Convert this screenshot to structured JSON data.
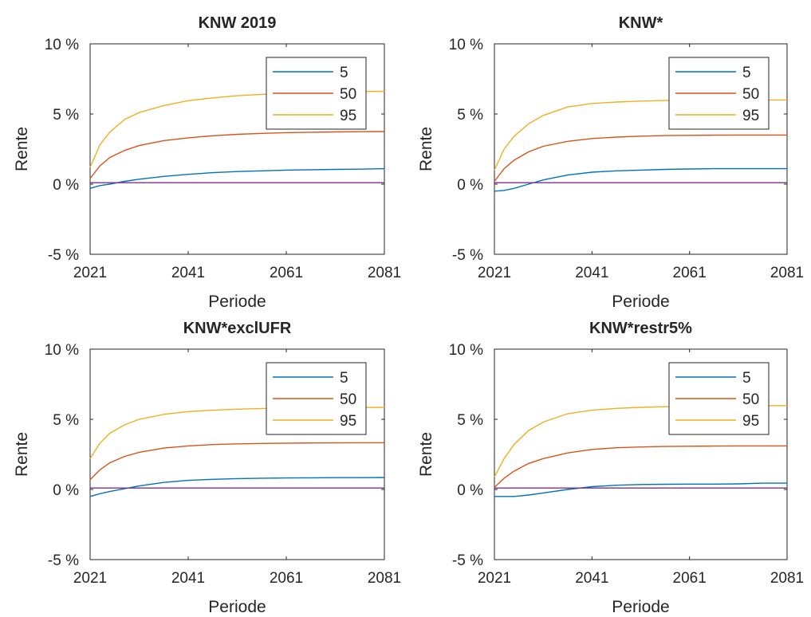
{
  "figure": {
    "background": "#ffffff",
    "series_colors": [
      "#0072BD",
      "#D95319",
      "#EDB120",
      "#7E2F8E"
    ]
  },
  "chart_data": [
    {
      "type": "line",
      "title": "KNW 2019",
      "xlabel": "Periode",
      "ylabel": "Rente",
      "xlim": [
        2021,
        2081
      ],
      "ylim": [
        -5,
        10
      ],
      "xticks": [
        2021,
        2041,
        2061,
        2081
      ],
      "xtick_labels": [
        "2021",
        "2041",
        "2061",
        "2081"
      ],
      "yticks": [
        -5,
        0,
        5,
        10
      ],
      "ytick_labels": [
        "-5 %",
        "0 %",
        "5 %",
        "10 %"
      ],
      "legend": {
        "position": "top-right",
        "entries": [
          "5",
          "50",
          "95"
        ]
      },
      "grid": false,
      "x": [
        2021,
        2023,
        2025,
        2028,
        2031,
        2036,
        2041,
        2046,
        2051,
        2056,
        2061,
        2066,
        2071,
        2076,
        2081
      ],
      "series": [
        {
          "name": "5",
          "values": [
            -0.3,
            -0.1,
            0.0,
            0.2,
            0.35,
            0.55,
            0.7,
            0.82,
            0.9,
            0.95,
            1.0,
            1.03,
            1.05,
            1.07,
            1.1
          ]
        },
        {
          "name": "50",
          "values": [
            0.4,
            1.3,
            1.9,
            2.4,
            2.75,
            3.1,
            3.3,
            3.45,
            3.55,
            3.62,
            3.67,
            3.7,
            3.72,
            3.74,
            3.75
          ]
        },
        {
          "name": "95",
          "values": [
            1.2,
            2.8,
            3.7,
            4.6,
            5.1,
            5.6,
            5.95,
            6.15,
            6.3,
            6.4,
            6.48,
            6.53,
            6.57,
            6.6,
            6.62
          ]
        },
        {
          "values": [
            0.1,
            0.1,
            0.1,
            0.1,
            0.1,
            0.1,
            0.1,
            0.1,
            0.1,
            0.1,
            0.1,
            0.1,
            0.1,
            0.1,
            0.1
          ]
        }
      ]
    },
    {
      "type": "line",
      "title": "KNW*",
      "xlabel": "Periode",
      "ylabel": "Rente",
      "xlim": [
        2021,
        2081
      ],
      "ylim": [
        -5,
        10
      ],
      "xticks": [
        2021,
        2041,
        2061,
        2081
      ],
      "xtick_labels": [
        "2021",
        "2041",
        "2061",
        "2081"
      ],
      "yticks": [
        -5,
        0,
        5,
        10
      ],
      "ytick_labels": [
        "-5 %",
        "0 %",
        "5 %",
        "10 %"
      ],
      "legend": {
        "position": "top-right",
        "entries": [
          "5",
          "50",
          "95"
        ]
      },
      "grid": false,
      "x": [
        2021,
        2023,
        2025,
        2028,
        2031,
        2036,
        2041,
        2046,
        2051,
        2056,
        2061,
        2066,
        2071,
        2076,
        2081
      ],
      "series": [
        {
          "name": "5",
          "values": [
            -0.5,
            -0.45,
            -0.3,
            0.0,
            0.3,
            0.65,
            0.85,
            0.95,
            1.0,
            1.05,
            1.08,
            1.1,
            1.1,
            1.1,
            1.1
          ]
        },
        {
          "name": "50",
          "values": [
            0.2,
            1.1,
            1.7,
            2.3,
            2.7,
            3.05,
            3.25,
            3.35,
            3.42,
            3.46,
            3.48,
            3.49,
            3.5,
            3.5,
            3.5
          ]
        },
        {
          "name": "95",
          "values": [
            1.0,
            2.5,
            3.4,
            4.3,
            4.9,
            5.5,
            5.75,
            5.85,
            5.92,
            5.96,
            5.98,
            6.0,
            6.0,
            6.0,
            6.0
          ]
        },
        {
          "values": [
            0.1,
            0.1,
            0.1,
            0.1,
            0.1,
            0.1,
            0.1,
            0.1,
            0.1,
            0.1,
            0.1,
            0.1,
            0.1,
            0.1,
            0.1
          ]
        }
      ]
    },
    {
      "type": "line",
      "title": "KNW*exclUFR",
      "xlabel": "Periode",
      "ylabel": "Rente",
      "xlim": [
        2021,
        2081
      ],
      "ylim": [
        -5,
        10
      ],
      "xticks": [
        2021,
        2041,
        2061,
        2081
      ],
      "xtick_labels": [
        "2021",
        "2041",
        "2061",
        "2081"
      ],
      "yticks": [
        -5,
        0,
        5,
        10
      ],
      "ytick_labels": [
        "-5 %",
        "0 %",
        "5 %",
        "10 %"
      ],
      "legend": {
        "position": "top-right",
        "entries": [
          "5",
          "50",
          "95"
        ]
      },
      "grid": false,
      "x": [
        2021,
        2023,
        2025,
        2028,
        2031,
        2036,
        2041,
        2046,
        2051,
        2056,
        2061,
        2066,
        2071,
        2076,
        2081
      ],
      "series": [
        {
          "name": "5",
          "values": [
            -0.5,
            -0.3,
            -0.15,
            0.05,
            0.25,
            0.5,
            0.65,
            0.72,
            0.77,
            0.8,
            0.82,
            0.83,
            0.84,
            0.84,
            0.85
          ]
        },
        {
          "name": "50",
          "values": [
            0.7,
            1.4,
            1.9,
            2.35,
            2.65,
            2.95,
            3.1,
            3.2,
            3.25,
            3.28,
            3.3,
            3.31,
            3.32,
            3.33,
            3.33
          ]
        },
        {
          "name": "95",
          "values": [
            2.2,
            3.3,
            4.0,
            4.6,
            5.0,
            5.35,
            5.55,
            5.65,
            5.72,
            5.77,
            5.8,
            5.82,
            5.83,
            5.84,
            5.85
          ]
        },
        {
          "values": [
            0.1,
            0.1,
            0.1,
            0.1,
            0.1,
            0.1,
            0.1,
            0.1,
            0.1,
            0.1,
            0.1,
            0.1,
            0.1,
            0.1,
            0.1
          ]
        }
      ]
    },
    {
      "type": "line",
      "title": "KNW*restr5%",
      "xlabel": "Periode",
      "ylabel": "Rente",
      "xlim": [
        2021,
        2081
      ],
      "ylim": [
        -5,
        10
      ],
      "xticks": [
        2021,
        2041,
        2061,
        2081
      ],
      "xtick_labels": [
        "2021",
        "2041",
        "2061",
        "2081"
      ],
      "yticks": [
        -5,
        0,
        5,
        10
      ],
      "ytick_labels": [
        "-5 %",
        "0 %",
        "5 %",
        "10 %"
      ],
      "legend": {
        "position": "top-right",
        "entries": [
          "5",
          "50",
          "95"
        ]
      },
      "grid": false,
      "x": [
        2021,
        2023,
        2025,
        2028,
        2031,
        2036,
        2041,
        2046,
        2051,
        2056,
        2061,
        2066,
        2071,
        2076,
        2081
      ],
      "series": [
        {
          "name": "5",
          "values": [
            -0.5,
            -0.5,
            -0.5,
            -0.4,
            -0.25,
            0.0,
            0.2,
            0.3,
            0.35,
            0.37,
            0.38,
            0.38,
            0.4,
            0.45,
            0.45
          ]
        },
        {
          "name": "50",
          "values": [
            0.15,
            0.8,
            1.3,
            1.85,
            2.2,
            2.6,
            2.85,
            2.97,
            3.03,
            3.06,
            3.08,
            3.09,
            3.1,
            3.1,
            3.1
          ]
        },
        {
          "name": "95",
          "values": [
            0.9,
            2.2,
            3.2,
            4.2,
            4.8,
            5.4,
            5.65,
            5.78,
            5.85,
            5.9,
            5.93,
            5.95,
            5.96,
            5.97,
            5.98
          ]
        },
        {
          "values": [
            0.1,
            0.1,
            0.1,
            0.1,
            0.1,
            0.1,
            0.1,
            0.1,
            0.1,
            0.1,
            0.1,
            0.1,
            0.1,
            0.1,
            0.1
          ]
        }
      ]
    }
  ]
}
